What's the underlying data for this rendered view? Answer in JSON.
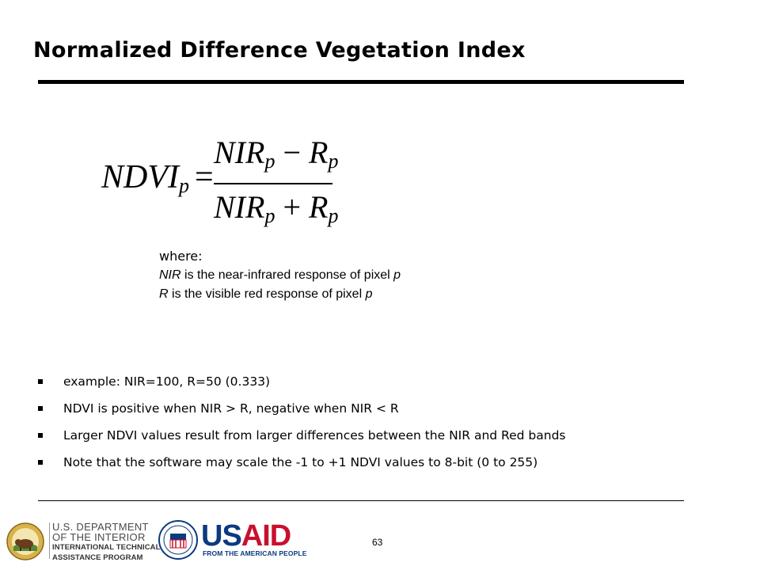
{
  "slide": {
    "title": "Normalized Difference Vegetation Index",
    "page_number": "63"
  },
  "formula": {
    "lhs": "NDVI",
    "lhs_sub": "p",
    "equals": "=",
    "num_a": "NIR",
    "num_a_sub": "p",
    "num_op": "−",
    "num_b": "R",
    "num_b_sub": "p",
    "den_a": "NIR",
    "den_a_sub": "p",
    "den_op": "+",
    "den_b": "R",
    "den_b_sub": "p"
  },
  "where": {
    "label": "where:",
    "line1_var": "NIR",
    "line1_text": " is the near-infrared response of pixel ",
    "line1_p": "p",
    "line2_var": "R",
    "line2_text": " is the visible red response of pixel ",
    "line2_p": "p"
  },
  "bullets": [
    "example: NIR=100, R=50 (0.333)",
    "NDVI is positive when NIR > R, negative when NIR < R",
    "Larger NDVI values result from larger differences between the NIR and Red bands",
    "Note that the software may scale the -1 to +1 NDVI values to 8-bit (0 to 255)"
  ],
  "footer": {
    "doi_line1": "U.S. DEPARTMENT",
    "doi_line2": "OF THE INTERIOR",
    "doi_line3": "INTERNATIONAL TECHNICAL",
    "doi_line4": "ASSISTANCE PROGRAM",
    "usaid_us": "US",
    "usaid_aid": "AID",
    "usaid_tagline": "FROM THE AMERICAN PEOPLE"
  },
  "colors": {
    "usaid_blue": "#0b3a80",
    "usaid_red": "#c8102e",
    "doi_gray": "#4a4a4a"
  },
  "icons": [
    "doi-seal-icon",
    "usaid-seal-icon"
  ]
}
